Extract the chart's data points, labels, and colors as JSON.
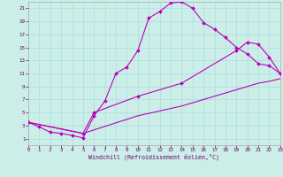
{
  "background_color": "#cceee8",
  "grid_color": "#aadddd",
  "line_color": "#bb00bb",
  "xlabel": "Windchill (Refroidissement éolien,°C)",
  "xlim": [
    0,
    23
  ],
  "ylim": [
    0,
    22
  ],
  "xticks": [
    0,
    1,
    2,
    3,
    4,
    5,
    6,
    7,
    8,
    9,
    10,
    11,
    12,
    13,
    14,
    15,
    16,
    17,
    18,
    19,
    20,
    21,
    22,
    23
  ],
  "yticks": [
    1,
    3,
    5,
    7,
    9,
    11,
    13,
    15,
    17,
    19,
    21
  ],
  "line1_x": [
    0,
    1,
    2,
    3,
    4,
    5,
    6,
    7,
    8,
    9,
    10,
    11,
    12,
    13,
    14,
    15,
    16,
    17,
    18,
    19,
    20,
    21,
    22,
    23
  ],
  "line1_y": [
    3.5,
    2.8,
    2.0,
    1.8,
    1.5,
    1.1,
    4.5,
    6.8,
    11.0,
    12.0,
    14.5,
    19.5,
    20.5,
    21.8,
    22.0,
    21.0,
    18.8,
    17.8,
    16.5,
    15.0,
    14.0,
    12.5,
    12.2,
    11.0
  ],
  "line2_x": [
    0,
    5,
    6,
    10,
    14,
    19,
    20,
    21,
    22,
    23
  ],
  "line2_y": [
    3.5,
    1.8,
    5.0,
    7.5,
    9.5,
    14.5,
    15.8,
    15.5,
    13.5,
    11.0
  ],
  "line3_x": [
    0,
    5,
    10,
    14,
    15,
    16,
    17,
    18,
    19,
    20,
    21,
    22,
    23
  ],
  "line3_y": [
    3.5,
    1.8,
    4.5,
    6.0,
    6.5,
    7.0,
    7.5,
    8.0,
    8.5,
    9.0,
    9.5,
    9.8,
    10.2
  ]
}
